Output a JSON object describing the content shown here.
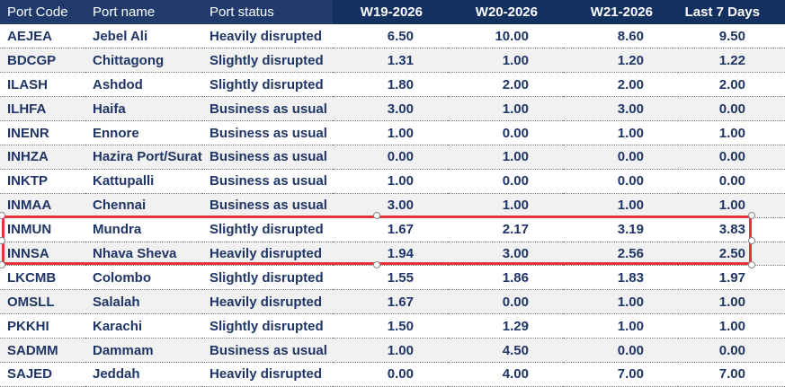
{
  "table": {
    "headers": [
      "Port Code",
      "Port name",
      "Port status",
      "W19-2026",
      "W20-2026",
      "W21-2026",
      "Last 7 Days"
    ],
    "rows": [
      [
        "AEJEA",
        "Jebel Ali",
        "Heavily disrupted",
        "6.50",
        "10.00",
        "8.60",
        "9.50"
      ],
      [
        "BDCGP",
        "Chittagong",
        "Slightly disrupted",
        "1.31",
        "1.00",
        "1.20",
        "1.22"
      ],
      [
        "ILASH",
        "Ashdod",
        "Slightly disrupted",
        "1.80",
        "2.00",
        "2.00",
        "2.00"
      ],
      [
        "ILHFA",
        "Haifa",
        "Business as usual",
        "3.00",
        "1.00",
        "3.00",
        "0.00"
      ],
      [
        "INENR",
        "Ennore",
        "Business as usual",
        "1.00",
        "0.00",
        "1.00",
        "1.00"
      ],
      [
        "INHZA",
        "Hazira Port/Surat",
        "Business as usual",
        "0.00",
        "1.00",
        "0.00",
        "0.00"
      ],
      [
        "INKTP",
        "Kattupalli",
        "Business as usual",
        "1.00",
        "0.00",
        "0.00",
        "0.00"
      ],
      [
        "INMAA",
        "Chennai",
        "Business as usual",
        "3.00",
        "1.00",
        "1.00",
        "1.00"
      ],
      [
        "INMUN",
        "Mundra",
        "Slightly disrupted",
        "1.67",
        "2.17",
        "3.19",
        "3.83"
      ],
      [
        "INNSA",
        "Nhava Sheva",
        "Heavily disrupted",
        "1.94",
        "3.00",
        "2.56",
        "2.50"
      ],
      [
        "LKCMB",
        "Colombo",
        "Slightly disrupted",
        "1.55",
        "1.86",
        "1.83",
        "1.97"
      ],
      [
        "OMSLL",
        "Salalah",
        "Heavily disrupted",
        "1.67",
        "0.00",
        "1.00",
        "1.00"
      ],
      [
        "PKKHI",
        "Karachi",
        "Slightly disrupted",
        "1.50",
        "1.29",
        "1.00",
        "1.00"
      ],
      [
        "SADMM",
        "Dammam",
        "Business as usual",
        "1.00",
        "4.50",
        "0.00",
        "0.00"
      ],
      [
        "SAJED",
        "Jeddah",
        "Heavily disrupted",
        "0.00",
        "4.00",
        "7.00",
        "7.00"
      ]
    ]
  },
  "colors": {
    "header_left": "#1f3a6b",
    "header_right": "#14305f",
    "text": "#1f3566",
    "selection": "#e5353b"
  }
}
